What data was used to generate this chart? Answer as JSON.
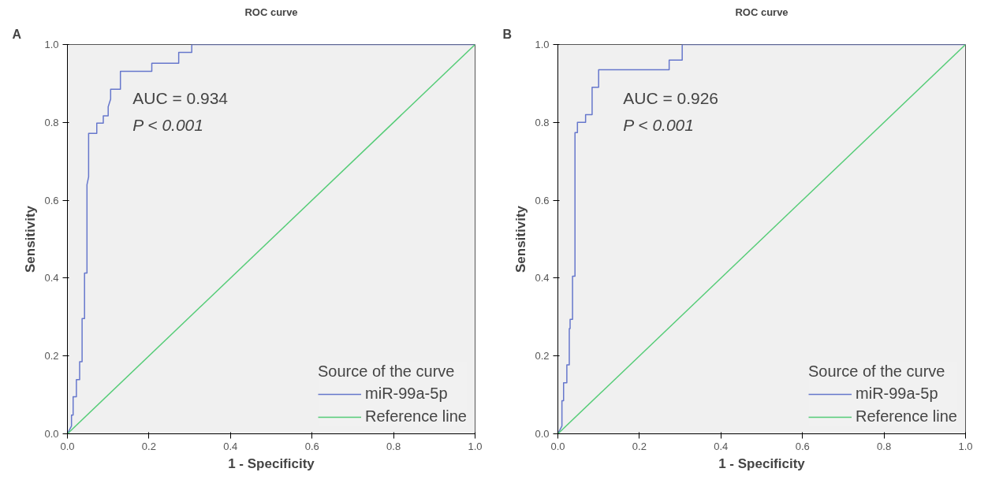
{
  "chart_data": [
    {
      "type": "line",
      "title": "ROC curve",
      "xlabel": "1 - Specificity",
      "ylabel": "Sensitivity",
      "legend_title": "Source of the curve",
      "legend": "bottom right",
      "annotations": [
        "A",
        "AUC = 0.934",
        "P < 0.001"
      ],
      "xlim": [
        0,
        1
      ],
      "ylim": [
        0,
        1
      ],
      "xticks": [
        {
          "value": 0,
          "label": "0.0"
        },
        {
          "value": 0.2,
          "label": "0.2"
        },
        {
          "value": 0.4,
          "label": "0.4"
        },
        {
          "value": 0.6,
          "label": "0.6"
        },
        {
          "value": 0.8,
          "label": "0.8"
        },
        {
          "value": 1,
          "label": "1.0"
        }
      ],
      "yticks": [
        {
          "value": 0,
          "label": "0.0"
        },
        {
          "value": 0.2,
          "label": "0.2"
        },
        {
          "value": 0.4,
          "label": "0.4"
        },
        {
          "value": 0.6,
          "label": "0.6"
        },
        {
          "value": 0.8,
          "label": "0.8"
        },
        {
          "value": 1,
          "label": "1.0"
        }
      ],
      "series": [
        {
          "name": "miR-99a-5p",
          "color": "#6677cc",
          "x": [
            0,
            0.01,
            0.01,
            0.014,
            0.014,
            0.022,
            0.022,
            0.03,
            0.03,
            0.036,
            0.036,
            0.042,
            0.042,
            0.048,
            0.048,
            0.052,
            0.052,
            0.072,
            0.072,
            0.088,
            0.088,
            0.1,
            0.1,
            0.106,
            0.106,
            0.13,
            0.13,
            0.207,
            0.207,
            0.273,
            0.273,
            0.305,
            0.305,
            1
          ],
          "values": [
            0,
            0.02,
            0.048,
            0.048,
            0.095,
            0.095,
            0.139,
            0.139,
            0.185,
            0.185,
            0.296,
            0.296,
            0.413,
            0.413,
            0.64,
            0.66,
            0.772,
            0.772,
            0.798,
            0.798,
            0.817,
            0.817,
            0.84,
            0.86,
            0.885,
            0.885,
            0.931,
            0.931,
            0.952,
            0.952,
            0.98,
            0.98,
            1,
            1
          ]
        },
        {
          "name": "Reference line",
          "color": "#55cc77",
          "x": [
            0,
            1
          ],
          "values": [
            0,
            1
          ]
        }
      ]
    },
    {
      "type": "line",
      "title": "ROC curve",
      "xlabel": "1 - Specificity",
      "ylabel": "Sensitivity",
      "legend_title": "Source of the curve",
      "legend": "bottom right",
      "annotations": [
        "B",
        "AUC = 0.926",
        "P < 0.001"
      ],
      "xlim": [
        0,
        1
      ],
      "ylim": [
        0,
        1
      ],
      "xticks": [
        {
          "value": 0,
          "label": "0.0"
        },
        {
          "value": 0.2,
          "label": "0.2"
        },
        {
          "value": 0.4,
          "label": "0.4"
        },
        {
          "value": 0.6,
          "label": "0.6"
        },
        {
          "value": 0.8,
          "label": "0.8"
        },
        {
          "value": 1,
          "label": "1.0"
        }
      ],
      "yticks": [
        {
          "value": 0,
          "label": "0.0"
        },
        {
          "value": 0.2,
          "label": "0.2"
        },
        {
          "value": 0.4,
          "label": "0.4"
        },
        {
          "value": 0.6,
          "label": "0.6"
        },
        {
          "value": 0.8,
          "label": "0.8"
        },
        {
          "value": 1,
          "label": "1.0"
        }
      ],
      "series": [
        {
          "name": "miR-99a-5p",
          "color": "#6677cc",
          "x": [
            0,
            0.01,
            0.01,
            0.014,
            0.014,
            0.022,
            0.022,
            0.028,
            0.028,
            0.03,
            0.03,
            0.036,
            0.036,
            0.042,
            0.042,
            0.048,
            0.048,
            0.068,
            0.068,
            0.084,
            0.084,
            0.1,
            0.1,
            0.129,
            0.129,
            0.273,
            0.273,
            0.305,
            0.305,
            1
          ],
          "values": [
            0,
            0.02,
            0.085,
            0.085,
            0.131,
            0.131,
            0.177,
            0.177,
            0.27,
            0.27,
            0.294,
            0.294,
            0.405,
            0.405,
            0.774,
            0.774,
            0.8,
            0.8,
            0.82,
            0.82,
            0.89,
            0.89,
            0.935,
            0.935,
            0.935,
            0.935,
            0.96,
            0.96,
            1,
            1
          ]
        },
        {
          "name": "Reference line",
          "color": "#55cc77",
          "x": [
            0,
            1
          ],
          "values": [
            0,
            1
          ]
        }
      ]
    }
  ]
}
